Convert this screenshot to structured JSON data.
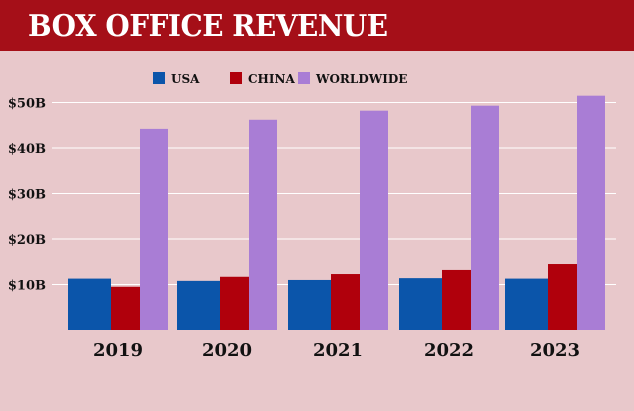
{
  "title": "BOX OFFICE REVENUE",
  "colors": {
    "header": "#a50f18",
    "background": "#e8c8cb",
    "usa": "#0b55aa",
    "china": "#b0000c",
    "worldwide": "#a97dd5"
  },
  "chart_data": {
    "type": "bar",
    "title": "BOX OFFICE REVENUE",
    "categories": [
      "2019",
      "2020",
      "2021",
      "2022",
      "2023"
    ],
    "series": [
      {
        "name": "USA",
        "values": [
          11.3,
          10.8,
          11.0,
          11.4,
          11.3
        ]
      },
      {
        "name": "CHINA",
        "values": [
          9.5,
          11.7,
          12.3,
          13.2,
          14.5
        ]
      },
      {
        "name": "WORLDWIDE",
        "values": [
          44.2,
          46.2,
          48.2,
          49.3,
          51.5
        ]
      }
    ],
    "yticks": [
      "$10B",
      "$20B",
      "$30B",
      "$40B",
      "$50B"
    ],
    "ytick_values": [
      10,
      20,
      30,
      40,
      50
    ],
    "ylim": [
      0,
      52
    ],
    "grid": true,
    "legend": "top"
  }
}
